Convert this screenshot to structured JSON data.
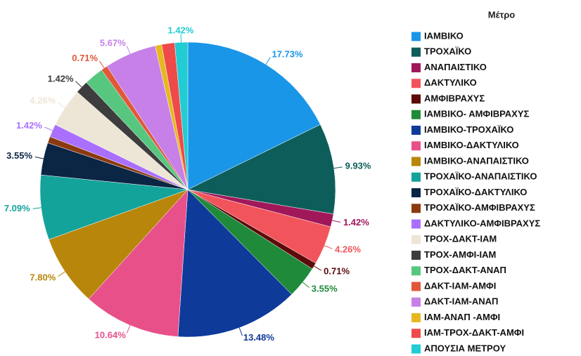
{
  "chart_data": {
    "type": "pie",
    "legend_title": "Μέτρο",
    "legend": "right",
    "categories": [
      "ΙΑΜΒΙΚΟ",
      "ΤΡΟΧΑΪΚΟ",
      "ΑΝΑΠΑΙΣΤΙΚΟ",
      "ΔΑΚΤΥΛΙΚΟ",
      "ΑΜΦΙΒΡΑΧΥΣ",
      "ΙΑΜΒΙΚΟ- ΑΜΦΙΒΡΑΧΥΣ",
      "ΙΑΜΒΙΚΟ-ΤΡΟΧΑΪΚΟ",
      "ΙΑΜΒΙΚΟ-ΔΑΚΤΥΛΙΚΟ",
      "ΙΑΜΒΙΚΟ-ΑΝΑΠΑΙΣΤΙΚΟ",
      "ΤΡΟΧΑΪΚΟ-ΑΝΑΠΑΙΣΤΙΚΟ",
      "ΤΡΟΧΑΪΚΟ-ΔΑΚΤΥΛΙΚΟ",
      "ΤΡΟΧΑΪΚΟ-ΑΜΦΙΒΡΑΧΥΣ",
      "ΔΑΚΤΥΛΙΚΟ-ΑΜΦΙΒΡΑΧΥΣ",
      "ΤΡΟΧ-ΔΑΚΤ-ΙΑΜ",
      "ΤΡΟΧ-ΑΜΦΙ-ΙΑΜ",
      "ΤΡΟΧ-ΔΑΚΤ-ΑΝΑΠ",
      "ΔΑΚΤ-ΙΑΜ-ΑΜΦΙ",
      "ΔΑΚΤ-ΙΑΜ-ΑΝΑΠ",
      "ΙΑΜ-ΑΝΑΠ -ΑΜΦΙ",
      "ΙΑΜ-ΤΡΟΧ-ΔΑΚΤ-ΑΜΦΙ",
      "ΑΠΟΥΣΙΑ ΜΕΤΡΟΥ"
    ],
    "values": [
      17.73,
      9.93,
      1.42,
      4.26,
      0.71,
      3.55,
      13.48,
      10.64,
      7.8,
      7.09,
      3.55,
      0.71,
      1.42,
      4.26,
      1.42,
      2.13,
      0.71,
      5.67,
      0.71,
      1.42,
      1.42
    ],
    "value_labels": [
      "17.73%",
      "9.93%",
      "1.42%",
      "4.26%",
      "0.71%",
      "3.55%",
      "13.48%",
      "10.64%",
      "7.80%",
      "7.09%",
      "3.55%",
      null,
      "1.42%",
      "4.26%",
      "1.42%",
      null,
      "0.71%",
      "5.67%",
      null,
      null,
      "1.42%"
    ],
    "colors": [
      "#1a96e8",
      "#0d5e5a",
      "#a0185a",
      "#f2545b",
      "#5c0a0a",
      "#1f8a3a",
      "#0e3a9a",
      "#e8508a",
      "#b8860b",
      "#13a39a",
      "#0b2545",
      "#8b3a0f",
      "#a970ff",
      "#ede6d6",
      "#3d3d3d",
      "#57c77f",
      "#e0583a",
      "#c780e8",
      "#e6b820",
      "#ee4a4a",
      "#22ccd3"
    ]
  }
}
